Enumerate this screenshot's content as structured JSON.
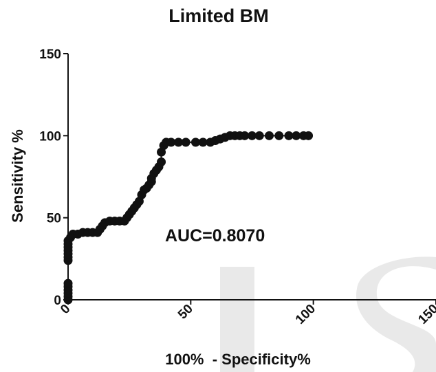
{
  "chart_data": {
    "type": "scatter",
    "title": "Limited BM",
    "xlabel": "100%  - Specificity%",
    "ylabel": "Sensitivity %",
    "xlim": [
      0,
      150
    ],
    "ylim": [
      0,
      150
    ],
    "xticks": [
      "0",
      "50",
      "100",
      "150"
    ],
    "yticks": [
      "0",
      "50",
      "100",
      "150"
    ],
    "annotation": "AUC=0.8070",
    "grid": false,
    "legend": "none",
    "series": [
      {
        "points": [
          [
            0,
            0
          ],
          [
            0,
            2
          ],
          [
            0,
            4
          ],
          [
            0,
            6
          ],
          [
            0,
            8
          ],
          [
            0,
            10
          ],
          [
            0,
            24
          ],
          [
            0,
            26
          ],
          [
            0,
            28
          ],
          [
            0,
            30
          ],
          [
            0,
            32
          ],
          [
            0,
            34
          ],
          [
            0,
            36
          ],
          [
            1,
            38
          ],
          [
            2,
            40
          ],
          [
            4,
            40
          ],
          [
            6,
            41
          ],
          [
            8,
            41
          ],
          [
            10,
            41
          ],
          [
            12,
            41
          ],
          [
            13,
            43
          ],
          [
            14,
            45
          ],
          [
            15,
            47
          ],
          [
            17,
            48
          ],
          [
            19,
            48
          ],
          [
            21,
            48
          ],
          [
            23,
            48
          ],
          [
            24,
            50
          ],
          [
            25,
            52
          ],
          [
            26,
            54
          ],
          [
            27,
            56
          ],
          [
            28,
            58
          ],
          [
            29,
            60
          ],
          [
            30,
            64
          ],
          [
            31,
            67
          ],
          [
            32,
            68
          ],
          [
            33,
            70
          ],
          [
            34,
            72
          ],
          [
            34,
            74
          ],
          [
            35,
            77
          ],
          [
            36,
            79
          ],
          [
            37,
            81
          ],
          [
            38,
            84
          ],
          [
            38,
            90
          ],
          [
            39,
            94
          ],
          [
            40,
            96
          ],
          [
            42,
            96
          ],
          [
            45,
            96
          ],
          [
            48,
            96
          ],
          [
            52,
            96
          ],
          [
            55,
            96
          ],
          [
            58,
            96
          ],
          [
            60,
            97
          ],
          [
            62,
            98
          ],
          [
            64,
            99
          ],
          [
            66,
            100
          ],
          [
            68,
            100
          ],
          [
            70,
            100
          ],
          [
            72,
            100
          ],
          [
            75,
            100
          ],
          [
            78,
            100
          ],
          [
            82,
            100
          ],
          [
            86,
            100
          ],
          [
            90,
            100
          ],
          [
            93,
            100
          ],
          [
            96,
            100
          ],
          [
            98,
            100
          ]
        ]
      }
    ]
  },
  "watermark": {
    "color": "#e9e9e9"
  }
}
